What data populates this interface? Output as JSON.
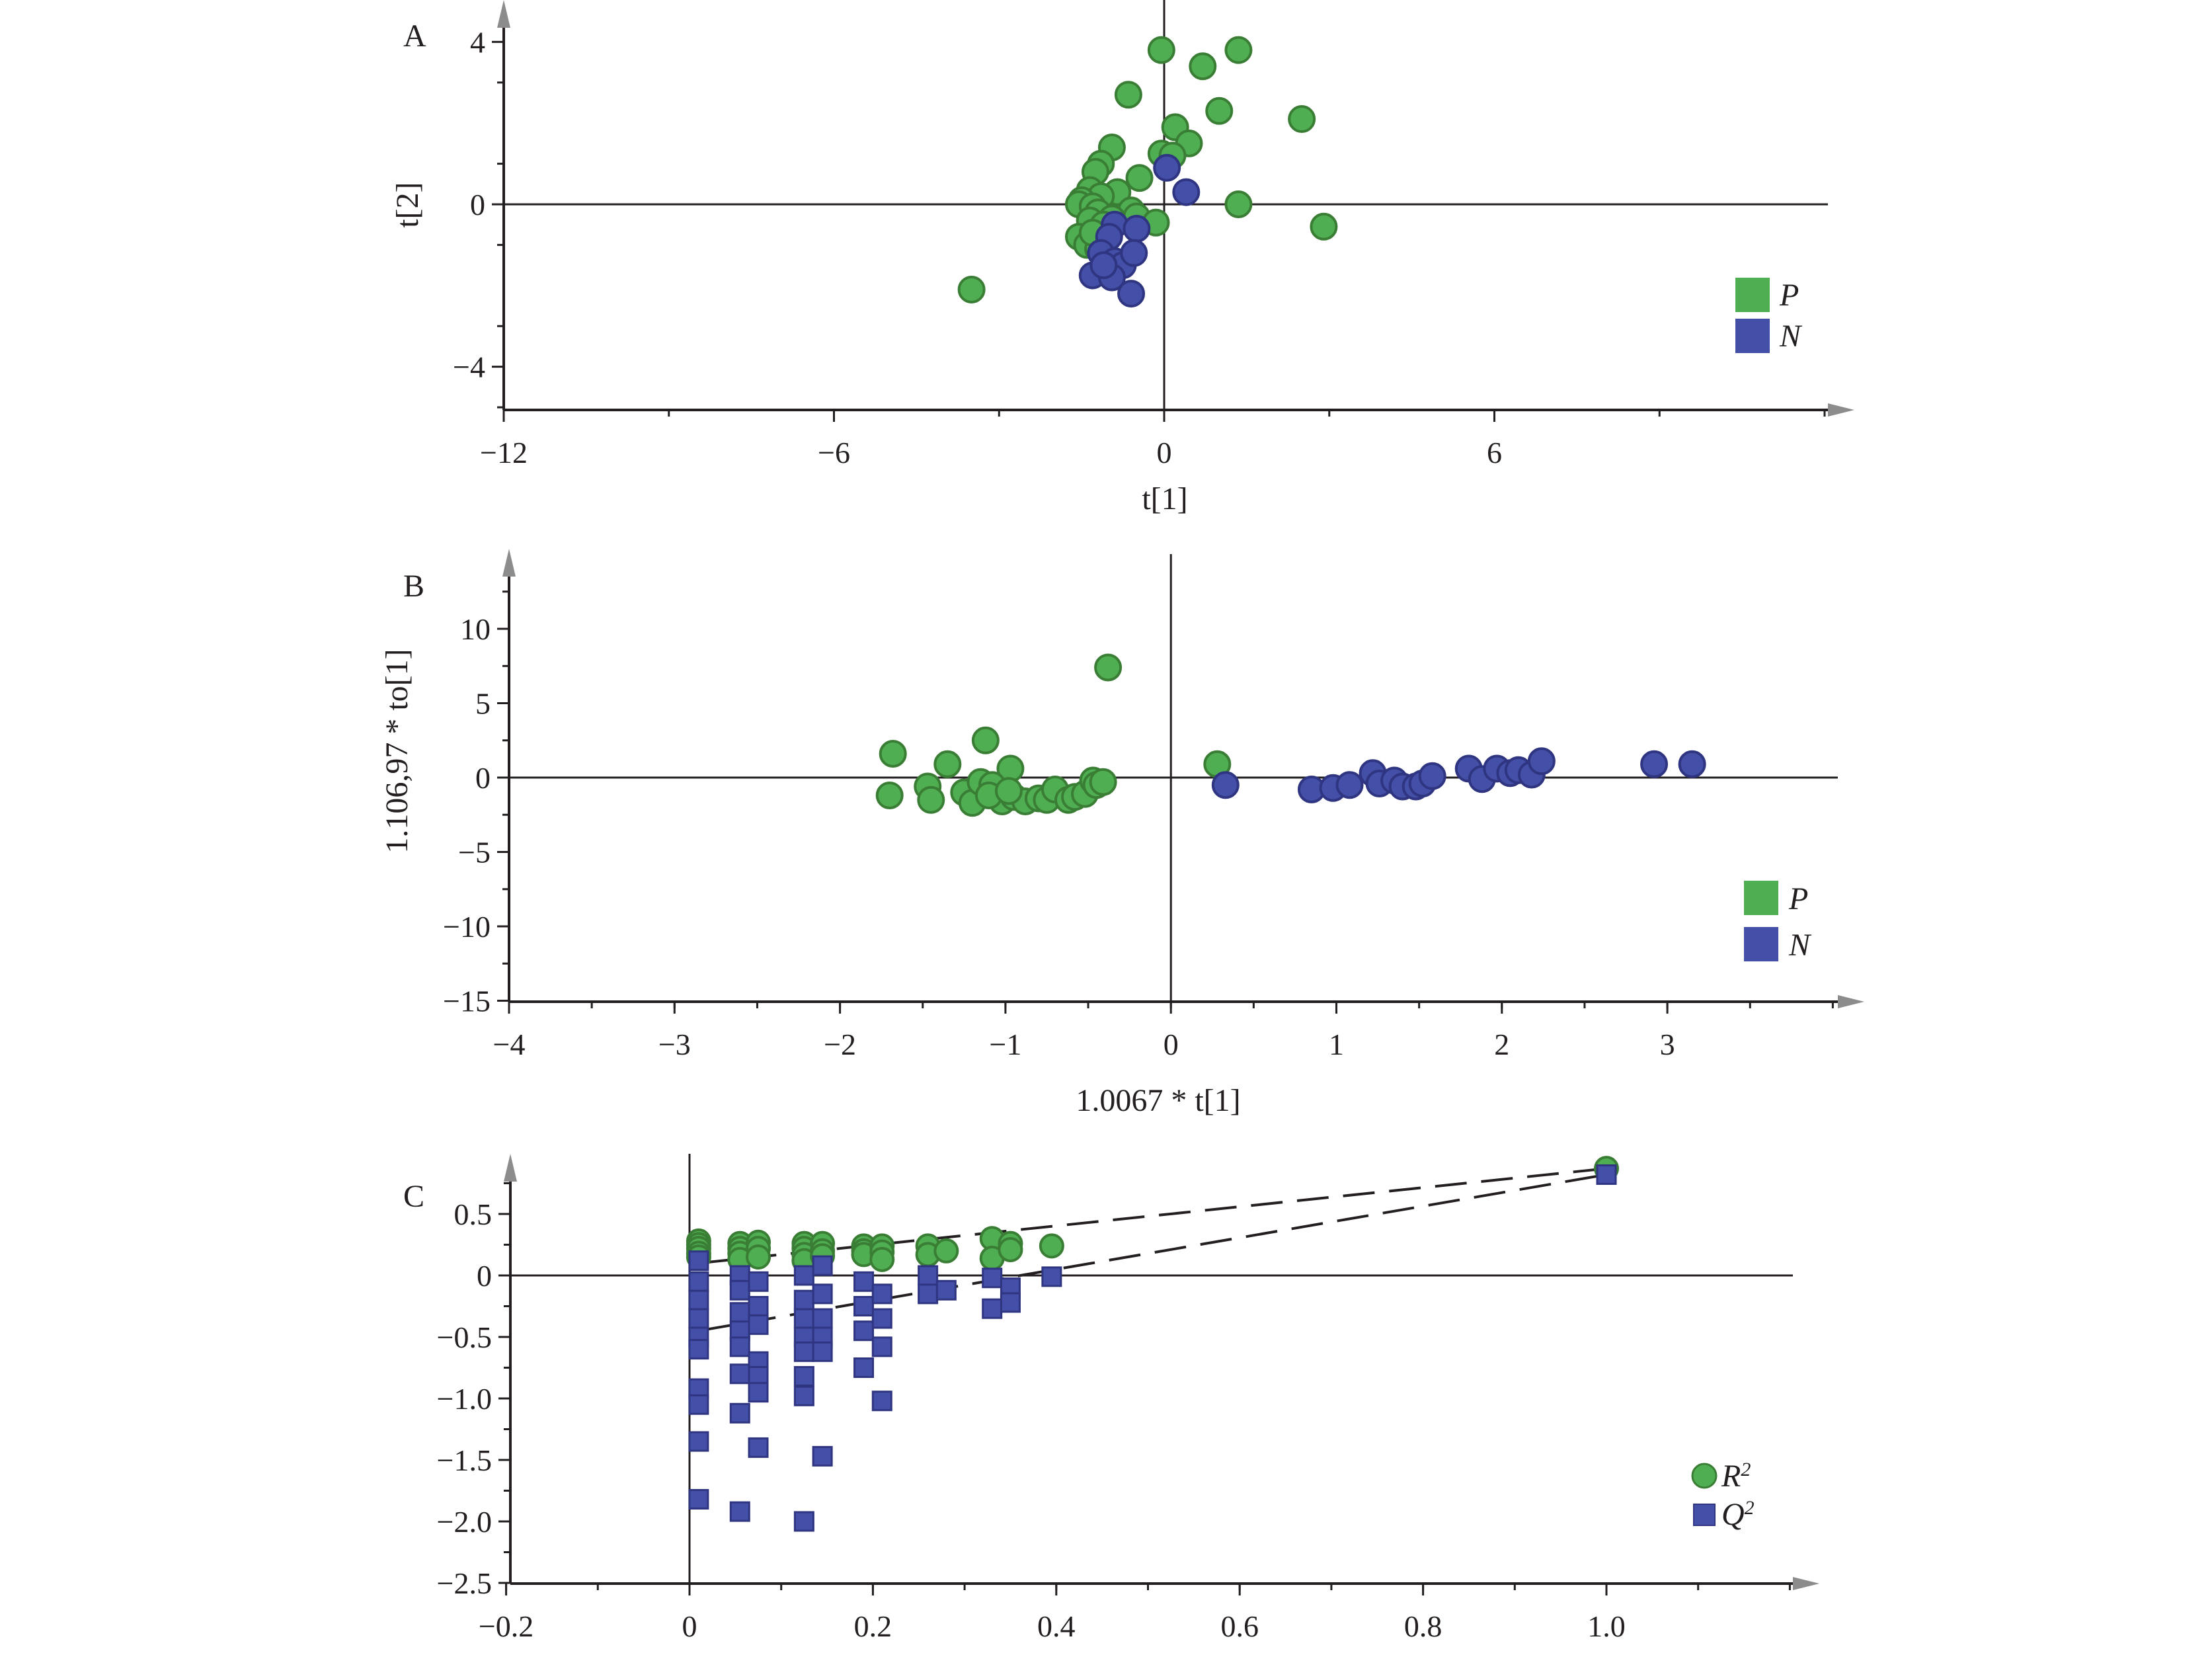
{
  "figure": {
    "colors": {
      "P_fill": "#50ae52",
      "P_stroke": "#3a7d35",
      "N_fill": "#4450a8",
      "N_stroke": "#2f3580",
      "axis": "#231f20",
      "arrow": "#8c8c8c"
    }
  },
  "chart_data": [
    {
      "panel": "A",
      "type": "scatter",
      "title": "",
      "xlabel": "t[1]",
      "ylabel": "t[2]",
      "xlim": [
        -12,
        12
      ],
      "ylim": [
        -5,
        5.2
      ],
      "xticks": [
        -12,
        -6,
        0,
        6
      ],
      "xtick_labels": [
        "−12",
        "−6",
        "0",
        "6"
      ],
      "yticks": [
        -4,
        0,
        4
      ],
      "ytick_labels": [
        "−4",
        "0",
        "4"
      ],
      "legend": {
        "position": "bottom-right",
        "entries": [
          {
            "label": "P",
            "marker": "square"
          },
          {
            "label": "N",
            "marker": "square"
          }
        ]
      },
      "series": [
        {
          "name": "P",
          "points": [
            [
              -0.05,
              3.8
            ],
            [
              1.35,
              3.8
            ],
            [
              0.7,
              3.4
            ],
            [
              -0.65,
              2.7
            ],
            [
              1.0,
              2.3
            ],
            [
              2.5,
              2.1
            ],
            [
              0.2,
              1.9
            ],
            [
              0.45,
              1.5
            ],
            [
              -0.05,
              1.25
            ],
            [
              0.15,
              1.2
            ],
            [
              -0.95,
              1.4
            ],
            [
              -1.15,
              1.0
            ],
            [
              -1.25,
              0.8
            ],
            [
              -0.45,
              0.65
            ],
            [
              -1.35,
              0.35
            ],
            [
              -0.85,
              0.3
            ],
            [
              -1.15,
              0.2
            ],
            [
              -1.5,
              0.1
            ],
            [
              -1.55,
              0.0
            ],
            [
              -1.3,
              -0.05
            ],
            [
              -0.6,
              -0.15
            ],
            [
              -1.2,
              -0.2
            ],
            [
              -0.95,
              -0.35
            ],
            [
              -0.5,
              -0.3
            ],
            [
              -0.15,
              -0.45
            ],
            [
              -1.35,
              -0.4
            ],
            [
              -1.1,
              -0.5
            ],
            [
              -1.55,
              -0.8
            ],
            [
              -1.4,
              -1.0
            ],
            [
              -1.2,
              -1.1
            ],
            [
              -1.3,
              -0.7
            ],
            [
              1.35,
              0.0
            ],
            [
              2.9,
              -0.55
            ],
            [
              -3.5,
              -2.1
            ]
          ]
        },
        {
          "name": "N",
          "points": [
            [
              0.05,
              0.9
            ],
            [
              0.4,
              0.3
            ],
            [
              -0.9,
              -0.5
            ],
            [
              -1.0,
              -0.8
            ],
            [
              -0.5,
              -0.6
            ],
            [
              -1.15,
              -1.2
            ],
            [
              -0.9,
              -1.4
            ],
            [
              -0.75,
              -1.5
            ],
            [
              -0.55,
              -1.2
            ],
            [
              -1.3,
              -1.75
            ],
            [
              -0.95,
              -1.8
            ],
            [
              -0.6,
              -2.2
            ],
            [
              -1.1,
              -1.5
            ]
          ]
        }
      ]
    },
    {
      "panel": "B",
      "type": "scatter",
      "title": "",
      "xlabel": "1.0067 * t[1]",
      "ylabel": "1.106,97 * to[1]",
      "xlim": [
        -4,
        4
      ],
      "ylim": [
        -15,
        13.5
      ],
      "xticks": [
        -4,
        -3,
        -2,
        -1,
        0,
        1,
        2,
        3
      ],
      "xtick_labels": [
        "−4",
        "−3",
        "−2",
        "−1",
        "0",
        "1",
        "2",
        "3"
      ],
      "yticks": [
        -15,
        -10,
        -5,
        0,
        5,
        10
      ],
      "ytick_labels": [
        "−15",
        "−10",
        "−5",
        "0",
        "5",
        "10"
      ],
      "legend": {
        "position": "bottom-right",
        "entries": [
          {
            "label": "P",
            "marker": "square"
          },
          {
            "label": "N",
            "marker": "square"
          }
        ]
      },
      "series": [
        {
          "name": "P",
          "points": [
            [
              -0.38,
              7.4
            ],
            [
              -1.12,
              2.5
            ],
            [
              -1.68,
              1.6
            ],
            [
              -1.35,
              0.9
            ],
            [
              -0.97,
              0.6
            ],
            [
              -1.7,
              -1.2
            ],
            [
              -1.47,
              -0.6
            ],
            [
              -1.45,
              -1.5
            ],
            [
              -1.25,
              -1.0
            ],
            [
              -1.2,
              -1.7
            ],
            [
              -1.15,
              -0.3
            ],
            [
              -1.08,
              -0.5
            ],
            [
              -1.02,
              -1.6
            ],
            [
              -0.95,
              -1.3
            ],
            [
              -0.88,
              -1.6
            ],
            [
              -0.8,
              -1.4
            ],
            [
              -0.75,
              -1.5
            ],
            [
              -0.7,
              -0.8
            ],
            [
              -0.62,
              -1.5
            ],
            [
              -0.58,
              -1.3
            ],
            [
              -0.52,
              -1.1
            ],
            [
              -0.47,
              -0.2
            ],
            [
              -0.45,
              -0.5
            ],
            [
              -0.41,
              -0.3
            ],
            [
              -1.1,
              -1.2
            ],
            [
              -0.98,
              -0.9
            ],
            [
              0.28,
              0.9
            ]
          ]
        },
        {
          "name": "N",
          "points": [
            [
              0.33,
              -0.5
            ],
            [
              0.85,
              -0.8
            ],
            [
              0.98,
              -0.7
            ],
            [
              1.08,
              -0.5
            ],
            [
              1.22,
              0.3
            ],
            [
              1.26,
              -0.4
            ],
            [
              1.35,
              -0.2
            ],
            [
              1.4,
              -0.6
            ],
            [
              1.48,
              -0.6
            ],
            [
              1.52,
              -0.4
            ],
            [
              1.58,
              0.1
            ],
            [
              1.8,
              0.6
            ],
            [
              1.88,
              -0.1
            ],
            [
              1.97,
              0.6
            ],
            [
              2.05,
              0.3
            ],
            [
              2.1,
              0.5
            ],
            [
              2.18,
              0.2
            ],
            [
              2.24,
              1.1
            ],
            [
              2.92,
              0.9
            ],
            [
              3.15,
              0.9
            ]
          ]
        }
      ]
    },
    {
      "panel": "C",
      "type": "scatter",
      "title": "",
      "xlabel": "",
      "ylabel": "",
      "xlim": [
        -0.2,
        1.2
      ],
      "ylim": [
        -2.5,
        0.95
      ],
      "xticks": [
        -0.2,
        0,
        0.2,
        0.4,
        0.6,
        0.8,
        1.0
      ],
      "xtick_labels": [
        "−0.2",
        "0",
        "0.2",
        "0.4",
        "0.6",
        "0.8",
        "1.0"
      ],
      "yticks": [
        -2.5,
        -2.0,
        -1.5,
        -1.0,
        -0.5,
        0,
        0.5
      ],
      "ytick_labels": [
        "−2.5",
        "−2.0",
        "−1.5",
        "−1.0",
        "−0.5",
        "0",
        "0.5"
      ],
      "legend": {
        "position": "bottom-right",
        "entries": [
          {
            "label": "R",
            "sup": "2",
            "marker": "circle"
          },
          {
            "label": "Q",
            "sup": "2",
            "marker": "square"
          }
        ]
      },
      "regression_lines": [
        {
          "name": "R2 fit",
          "from": [
            0.01,
            0.1
          ],
          "to": [
            1.0,
            0.87
          ],
          "style": "dashed"
        },
        {
          "name": "Q2 fit",
          "from": [
            0.01,
            -0.45
          ],
          "to": [
            1.0,
            0.82
          ],
          "style": "dashed"
        }
      ],
      "series": [
        {
          "name": "R2",
          "points": [
            [
              0.01,
              0.28
            ],
            [
              0.01,
              0.25
            ],
            [
              0.01,
              0.22
            ],
            [
              0.01,
              0.18
            ],
            [
              0.01,
              0.15
            ],
            [
              0.055,
              0.26
            ],
            [
              0.055,
              0.22
            ],
            [
              0.055,
              0.18
            ],
            [
              0.055,
              0.13
            ],
            [
              0.075,
              0.27
            ],
            [
              0.075,
              0.22
            ],
            [
              0.075,
              0.15
            ],
            [
              0.125,
              0.26
            ],
            [
              0.125,
              0.22
            ],
            [
              0.125,
              0.17
            ],
            [
              0.125,
              0.12
            ],
            [
              0.145,
              0.26
            ],
            [
              0.145,
              0.2
            ],
            [
              0.145,
              0.16
            ],
            [
              0.19,
              0.24
            ],
            [
              0.19,
              0.2
            ],
            [
              0.19,
              0.17
            ],
            [
              0.21,
              0.24
            ],
            [
              0.21,
              0.19
            ],
            [
              0.21,
              0.13
            ],
            [
              0.26,
              0.24
            ],
            [
              0.26,
              0.17
            ],
            [
              0.28,
              0.2
            ],
            [
              0.33,
              0.3
            ],
            [
              0.33,
              0.14
            ],
            [
              0.35,
              0.26
            ],
            [
              0.35,
              0.21
            ],
            [
              0.395,
              0.24
            ],
            [
              1.0,
              0.87
            ]
          ]
        },
        {
          "name": "Q2",
          "points": [
            [
              0.01,
              0.12
            ],
            [
              0.01,
              -0.05
            ],
            [
              0.01,
              -0.2
            ],
            [
              0.01,
              -0.35
            ],
            [
              0.01,
              -0.5
            ],
            [
              0.01,
              -0.6
            ],
            [
              0.01,
              -0.92
            ],
            [
              0.01,
              -1.05
            ],
            [
              0.01,
              -1.35
            ],
            [
              0.01,
              -1.82
            ],
            [
              0.055,
              0.0
            ],
            [
              0.055,
              -0.12
            ],
            [
              0.055,
              -0.3
            ],
            [
              0.055,
              -0.45
            ],
            [
              0.055,
              -0.58
            ],
            [
              0.055,
              -0.8
            ],
            [
              0.055,
              -1.12
            ],
            [
              0.055,
              -1.92
            ],
            [
              0.075,
              -0.05
            ],
            [
              0.075,
              -0.25
            ],
            [
              0.075,
              -0.4
            ],
            [
              0.075,
              -0.7
            ],
            [
              0.075,
              -0.82
            ],
            [
              0.075,
              -0.95
            ],
            [
              0.075,
              -1.4
            ],
            [
              0.125,
              0.0
            ],
            [
              0.125,
              -0.2
            ],
            [
              0.125,
              -0.35
            ],
            [
              0.125,
              -0.5
            ],
            [
              0.125,
              -0.62
            ],
            [
              0.125,
              -0.82
            ],
            [
              0.125,
              -0.98
            ],
            [
              0.125,
              -2.0
            ],
            [
              0.145,
              0.08
            ],
            [
              0.145,
              -0.15
            ],
            [
              0.145,
              -0.35
            ],
            [
              0.145,
              -0.5
            ],
            [
              0.145,
              -0.62
            ],
            [
              0.145,
              -1.47
            ],
            [
              0.19,
              -0.05
            ],
            [
              0.19,
              -0.25
            ],
            [
              0.19,
              -0.45
            ],
            [
              0.19,
              -0.75
            ],
            [
              0.21,
              -0.15
            ],
            [
              0.21,
              -0.35
            ],
            [
              0.21,
              -0.58
            ],
            [
              0.21,
              -1.02
            ],
            [
              0.26,
              0.0
            ],
            [
              0.26,
              -0.15
            ],
            [
              0.28,
              -0.12
            ],
            [
              0.33,
              -0.02
            ],
            [
              0.33,
              -0.27
            ],
            [
              0.35,
              -0.1
            ],
            [
              0.35,
              -0.22
            ],
            [
              0.395,
              -0.01
            ],
            [
              1.0,
              0.82
            ]
          ]
        }
      ]
    }
  ],
  "panels": {
    "A": {
      "label": "A",
      "xlabel": "t[1]",
      "ylabel": "t[2]",
      "legend": [
        "P",
        "N"
      ]
    },
    "B": {
      "label": "B",
      "xlabel": "1.0067 * t[1]",
      "ylabel": "1.106,97 * to[1]",
      "legend": [
        "P",
        "N"
      ]
    },
    "C": {
      "label": "C",
      "legend": [
        {
          "base": "R",
          "sup": "2"
        },
        {
          "base": "Q",
          "sup": "2"
        }
      ]
    }
  }
}
